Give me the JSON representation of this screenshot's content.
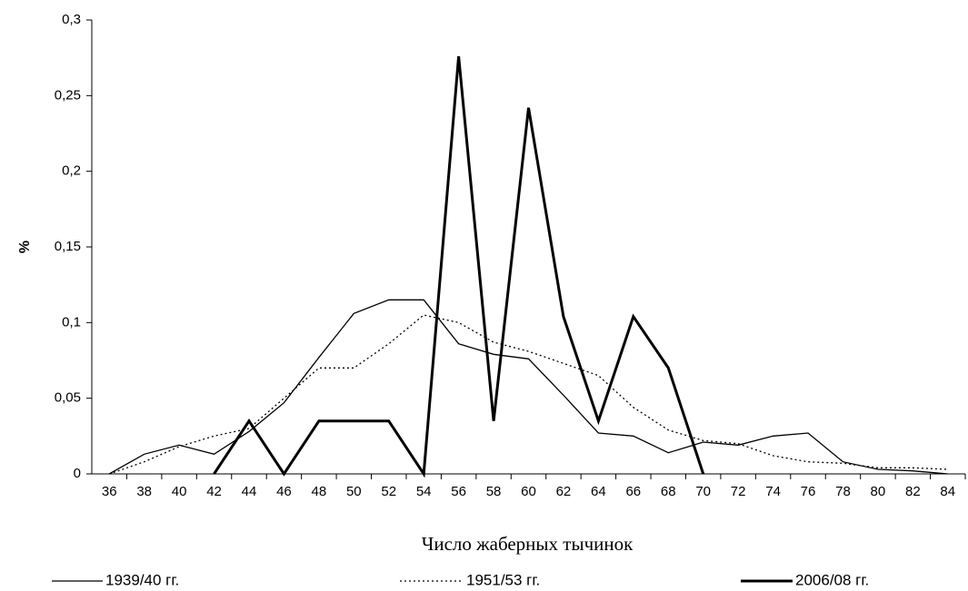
{
  "chart_data": {
    "type": "line",
    "x_label": "Число жаберных тычинок",
    "y_label": "%",
    "categories": [
      36,
      38,
      40,
      42,
      44,
      46,
      48,
      50,
      52,
      54,
      56,
      58,
      60,
      62,
      64,
      66,
      68,
      70,
      72,
      74,
      76,
      78,
      80,
      82,
      84
    ],
    "series": [
      {
        "name": "1939/40 гг.",
        "color": "#000000",
        "style": "thin",
        "values": [
          0,
          0.013,
          0.019,
          0.013,
          0.028,
          0.047,
          0.077,
          0.106,
          0.115,
          0.115,
          0.086,
          0.079,
          0.076,
          0.052,
          0.027,
          0.025,
          0.014,
          0.021,
          0.019,
          0.025,
          0.027,
          0.008,
          0.003,
          0.002,
          0
        ]
      },
      {
        "name": "1951/53 гг.",
        "color": "#000000",
        "style": "dotted",
        "values": [
          0,
          0.008,
          0.018,
          0.025,
          0.03,
          0.05,
          0.07,
          0.07,
          0.086,
          0.105,
          0.1,
          0.087,
          0.081,
          0.073,
          0.065,
          0.044,
          0.029,
          0.022,
          0.02,
          0.012,
          0.008,
          0.007,
          0.004,
          0.004,
          0.003
        ]
      },
      {
        "name": "2006/08 гг.",
        "color": "#000000",
        "style": "thick",
        "values": [
          null,
          null,
          null,
          0,
          0.035,
          0,
          0.035,
          0.035,
          0.035,
          0,
          0.276,
          0.035,
          0.242,
          0.104,
          0.035,
          0.104,
          0.07,
          0,
          null,
          null,
          null,
          null,
          null,
          null,
          null
        ]
      }
    ],
    "ylim": [
      0,
      0.3
    ],
    "yticks": [
      0,
      {
        "value": 0.05,
        "label": "0,05"
      },
      {
        "value": 0.1,
        "label": "0,1"
      },
      {
        "value": 0.15,
        "label": "0,15"
      },
      {
        "value": 0.2,
        "label": "0,2"
      },
      {
        "value": 0.25,
        "label": "0,25"
      },
      {
        "value": 0.3,
        "label": "0,3"
      }
    ],
    "grid": false,
    "legend": "bottom"
  }
}
